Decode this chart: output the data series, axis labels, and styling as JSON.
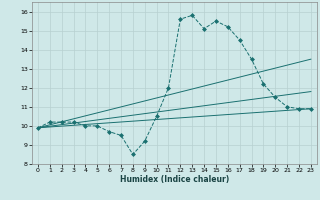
{
  "title": "",
  "xlabel": "Humidex (Indice chaleur)",
  "background_color": "#cfe8e8",
  "grid_color": "#b8d0d0",
  "line_color": "#1a7070",
  "xlim": [
    -0.5,
    23.5
  ],
  "ylim": [
    8,
    16.5
  ],
  "xticks": [
    0,
    1,
    2,
    3,
    4,
    5,
    6,
    7,
    8,
    9,
    10,
    11,
    12,
    13,
    14,
    15,
    16,
    17,
    18,
    19,
    20,
    21,
    22,
    23
  ],
  "yticks": [
    8,
    9,
    10,
    11,
    12,
    13,
    14,
    15,
    16
  ],
  "series_main": {
    "x": [
      0,
      1,
      2,
      3,
      4,
      5,
      6,
      7,
      8,
      9,
      10,
      11,
      12,
      13,
      14,
      15,
      16,
      17,
      18,
      19,
      20,
      21,
      22,
      23
    ],
    "y": [
      9.9,
      10.2,
      10.2,
      10.2,
      10.0,
      10.0,
      9.7,
      9.5,
      8.5,
      9.2,
      10.5,
      12.0,
      15.6,
      15.8,
      15.1,
      15.5,
      15.2,
      14.5,
      13.5,
      12.2,
      11.5,
      11.0,
      10.9,
      10.9
    ]
  },
  "trend_lines": [
    {
      "x": [
        0,
        23
      ],
      "y": [
        9.9,
        13.5
      ]
    },
    {
      "x": [
        0,
        23
      ],
      "y": [
        9.9,
        11.8
      ]
    },
    {
      "x": [
        0,
        23
      ],
      "y": [
        9.9,
        10.9
      ]
    }
  ]
}
